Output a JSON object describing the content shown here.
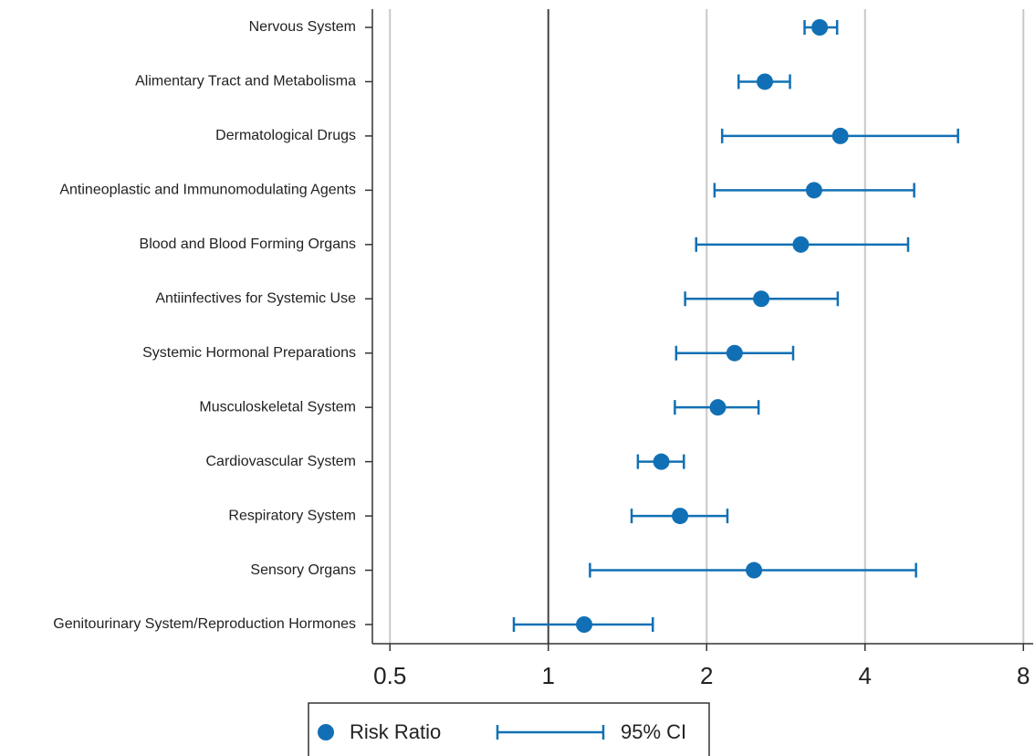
{
  "chart_data": {
    "type": "forest",
    "categories": [
      "Nervous System",
      "Alimentary Tract and Metabolisma",
      "Dermatological Drugs",
      "Antineoplastic and Immunomodulating Agents",
      "Blood and Blood Forming Organs",
      "Antiinfectives for Systemic Use",
      "Systemic Hormonal Preparations",
      "Musculoskeletal System",
      "Cardiovascular System",
      "Respiratory System",
      "Sensory Organs",
      "Genitourinary System/Reproduction Hormones"
    ],
    "values": [
      3.28,
      2.58,
      3.59,
      3.2,
      3.02,
      2.54,
      2.26,
      2.1,
      1.64,
      1.78,
      2.46,
      1.17
    ],
    "ci_low": [
      3.07,
      2.3,
      2.14,
      2.07,
      1.91,
      1.82,
      1.75,
      1.74,
      1.48,
      1.44,
      1.2,
      0.86
    ],
    "ci_high": [
      3.54,
      2.88,
      6.01,
      4.96,
      4.83,
      3.55,
      2.92,
      2.51,
      1.81,
      2.19,
      5.0,
      1.58
    ],
    "color": "#1170b5",
    "xscale": "log",
    "xlim": [
      0.463,
      8.35
    ],
    "xticks": [
      0.5,
      1,
      2,
      4,
      8
    ],
    "reference_line": 1,
    "grid": true,
    "legend": {
      "marker": "Risk Ratio",
      "interval": "95% CI"
    }
  }
}
